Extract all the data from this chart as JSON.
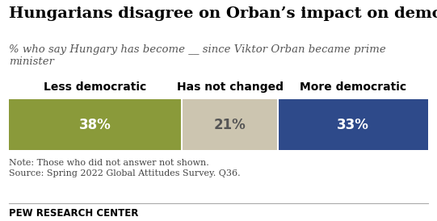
{
  "title": "Hungarians disagree on Orban’s impact on democracy",
  "subtitle": "% who say Hungary has become __ since Viktor Orban became prime\nminister",
  "categories": [
    "Less democratic",
    "Has not changed",
    "More democratic"
  ],
  "values": [
    38,
    21,
    33
  ],
  "bar_colors": [
    "#8a9a3a",
    "#ccc5b0",
    "#2e4a8a"
  ],
  "text_colors": [
    "#ffffff",
    "#555555",
    "#ffffff"
  ],
  "note": "Note: Those who did not answer not shown.\nSource: Spring 2022 Global Attitudes Survey. Q36.",
  "footer": "PEW RESEARCH CENTER",
  "background_color": "#ffffff",
  "title_fontsize": 14,
  "subtitle_fontsize": 9.5,
  "label_fontsize": 10,
  "value_fontsize": 12,
  "note_fontsize": 8,
  "footer_fontsize": 8.5
}
